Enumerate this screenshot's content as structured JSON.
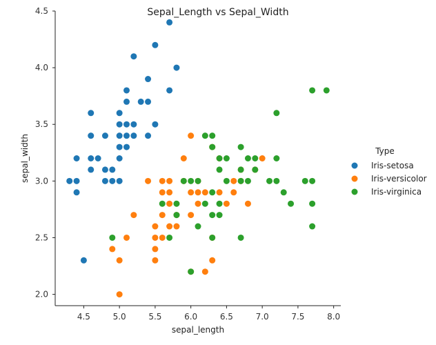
{
  "chart_data": {
    "type": "scatter",
    "title": "Sepal_Length vs Sepal_Width",
    "xlabel": "sepal_length",
    "ylabel": "sepal_width",
    "xlim": [
      4.1,
      8.1
    ],
    "ylim": [
      1.9,
      4.5
    ],
    "xticks": [
      4.5,
      5.0,
      5.5,
      6.0,
      6.5,
      7.0,
      7.5,
      8.0
    ],
    "xtick_labels": [
      "4.5",
      "5.0",
      "5.5",
      "6.0",
      "6.5",
      "7.0",
      "7.5",
      "8.0"
    ],
    "yticks": [
      2.0,
      2.5,
      3.0,
      3.5,
      4.0,
      4.5
    ],
    "ytick_labels": [
      "2.0",
      "2.5",
      "3.0",
      "3.5",
      "4.0",
      "4.5"
    ],
    "grid": false,
    "legend_title": "Type",
    "legend_position": "right",
    "series": [
      {
        "name": "Iris-setosa",
        "color": "#1f77b4",
        "points": [
          [
            4.3,
            3.0
          ],
          [
            4.4,
            2.9
          ],
          [
            4.4,
            3.0
          ],
          [
            4.4,
            3.2
          ],
          [
            4.5,
            2.3
          ],
          [
            4.6,
            3.1
          ],
          [
            4.6,
            3.2
          ],
          [
            4.6,
            3.4
          ],
          [
            4.6,
            3.6
          ],
          [
            4.7,
            3.2
          ],
          [
            4.8,
            3.0
          ],
          [
            4.8,
            3.1
          ],
          [
            4.8,
            3.4
          ],
          [
            4.9,
            3.0
          ],
          [
            4.9,
            3.1
          ],
          [
            5.0,
            3.0
          ],
          [
            5.0,
            3.2
          ],
          [
            5.0,
            3.3
          ],
          [
            5.0,
            3.4
          ],
          [
            5.0,
            3.5
          ],
          [
            5.0,
            3.6
          ],
          [
            5.1,
            3.3
          ],
          [
            5.1,
            3.4
          ],
          [
            5.1,
            3.5
          ],
          [
            5.1,
            3.7
          ],
          [
            5.1,
            3.8
          ],
          [
            5.2,
            3.4
          ],
          [
            5.2,
            3.5
          ],
          [
            5.2,
            4.1
          ],
          [
            5.3,
            3.7
          ],
          [
            5.4,
            3.4
          ],
          [
            5.4,
            3.7
          ],
          [
            5.4,
            3.9
          ],
          [
            5.5,
            3.5
          ],
          [
            5.5,
            4.2
          ],
          [
            5.7,
            3.8
          ],
          [
            5.7,
            4.4
          ],
          [
            5.8,
            4.0
          ]
        ]
      },
      {
        "name": "Iris-versicolor",
        "color": "#ff7f0e",
        "points": [
          [
            4.9,
            2.4
          ],
          [
            5.0,
            2.0
          ],
          [
            5.0,
            2.3
          ],
          [
            5.1,
            2.5
          ],
          [
            5.2,
            2.7
          ],
          [
            5.4,
            3.0
          ],
          [
            5.5,
            2.3
          ],
          [
            5.5,
            2.4
          ],
          [
            5.5,
            2.5
          ],
          [
            5.5,
            2.6
          ],
          [
            5.6,
            2.5
          ],
          [
            5.6,
            2.7
          ],
          [
            5.6,
            2.9
          ],
          [
            5.6,
            3.0
          ],
          [
            5.7,
            2.6
          ],
          [
            5.7,
            2.8
          ],
          [
            5.7,
            2.9
          ],
          [
            5.7,
            3.0
          ],
          [
            5.8,
            2.6
          ],
          [
            5.8,
            2.7
          ],
          [
            5.9,
            3.0
          ],
          [
            5.9,
            3.2
          ],
          [
            6.0,
            2.2
          ],
          [
            6.0,
            2.7
          ],
          [
            6.0,
            2.9
          ],
          [
            6.0,
            3.4
          ],
          [
            6.1,
            2.8
          ],
          [
            6.1,
            2.9
          ],
          [
            6.1,
            3.0
          ],
          [
            6.2,
            2.2
          ],
          [
            6.2,
            2.9
          ],
          [
            6.3,
            2.3
          ],
          [
            6.3,
            2.5
          ],
          [
            6.3,
            3.3
          ],
          [
            6.4,
            2.9
          ],
          [
            6.4,
            3.2
          ],
          [
            6.5,
            2.8
          ],
          [
            6.6,
            2.9
          ],
          [
            6.6,
            3.0
          ],
          [
            6.7,
            3.0
          ],
          [
            6.7,
            3.1
          ],
          [
            6.8,
            2.8
          ],
          [
            6.9,
            3.1
          ],
          [
            7.0,
            3.2
          ]
        ]
      },
      {
        "name": "Iris-virginica",
        "color": "#2ca02c",
        "points": [
          [
            4.9,
            2.5
          ],
          [
            5.6,
            2.8
          ],
          [
            5.7,
            2.5
          ],
          [
            5.8,
            2.7
          ],
          [
            5.8,
            2.8
          ],
          [
            5.9,
            3.0
          ],
          [
            6.0,
            2.2
          ],
          [
            6.0,
            3.0
          ],
          [
            6.1,
            2.6
          ],
          [
            6.1,
            3.0
          ],
          [
            6.2,
            2.8
          ],
          [
            6.2,
            3.4
          ],
          [
            6.3,
            2.5
          ],
          [
            6.3,
            2.7
          ],
          [
            6.3,
            2.9
          ],
          [
            6.3,
            3.3
          ],
          [
            6.3,
            3.4
          ],
          [
            6.4,
            2.7
          ],
          [
            6.4,
            2.8
          ],
          [
            6.4,
            3.1
          ],
          [
            6.4,
            3.2
          ],
          [
            6.5,
            3.0
          ],
          [
            6.5,
            3.2
          ],
          [
            6.7,
            2.5
          ],
          [
            6.7,
            3.0
          ],
          [
            6.7,
            3.1
          ],
          [
            6.7,
            3.3
          ],
          [
            6.8,
            3.0
          ],
          [
            6.8,
            3.2
          ],
          [
            6.9,
            3.1
          ],
          [
            6.9,
            3.2
          ],
          [
            7.1,
            3.0
          ],
          [
            7.2,
            3.0
          ],
          [
            7.2,
            3.2
          ],
          [
            7.2,
            3.6
          ],
          [
            7.3,
            2.9
          ],
          [
            7.4,
            2.8
          ],
          [
            7.6,
            3.0
          ],
          [
            7.7,
            2.6
          ],
          [
            7.7,
            2.8
          ],
          [
            7.7,
            3.0
          ],
          [
            7.7,
            3.8
          ],
          [
            7.9,
            3.8
          ]
        ]
      }
    ]
  }
}
